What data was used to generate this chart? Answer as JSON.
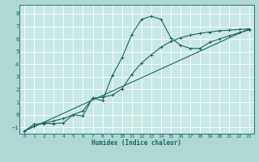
{
  "xlabel": "Humidex (Indice chaleur)",
  "ylabel": "",
  "background_color": "#aed8d4",
  "plot_bg_color": "#c8e8e5",
  "grid_color": "#ffffff",
  "line_color": "#1a6660",
  "xlim": [
    -0.5,
    23.5
  ],
  "ylim": [
    -1.5,
    8.7
  ],
  "xticks": [
    0,
    1,
    2,
    3,
    4,
    5,
    6,
    7,
    8,
    9,
    10,
    11,
    12,
    13,
    14,
    15,
    16,
    17,
    18,
    19,
    20,
    21,
    22,
    23
  ],
  "yticks": [
    -1,
    0,
    1,
    2,
    3,
    4,
    5,
    6,
    7,
    8
  ],
  "line1_x": [
    0,
    1,
    2,
    3,
    4,
    5,
    6,
    7,
    8,
    9,
    10,
    11,
    12,
    13,
    14,
    15,
    16,
    17,
    18,
    19,
    20,
    21,
    22,
    23
  ],
  "line1_y": [
    -1.3,
    -0.75,
    -0.7,
    -0.7,
    -0.65,
    0.0,
    -0.1,
    1.35,
    1.1,
    3.1,
    4.5,
    6.35,
    7.55,
    7.8,
    7.55,
    6.1,
    5.5,
    5.25,
    5.25,
    5.75,
    6.0,
    6.25,
    6.5,
    6.7
  ],
  "line2_x": [
    0,
    1,
    2,
    3,
    4,
    5,
    6,
    7,
    8,
    9,
    10,
    11,
    12,
    13,
    14,
    15,
    16,
    17,
    18,
    19,
    20,
    21,
    22,
    23
  ],
  "line2_y": [
    -1.3,
    -0.9,
    -0.65,
    -0.5,
    -0.3,
    0.0,
    0.3,
    1.3,
    1.4,
    1.55,
    2.05,
    3.2,
    4.1,
    4.75,
    5.35,
    5.8,
    6.1,
    6.3,
    6.45,
    6.55,
    6.65,
    6.7,
    6.75,
    6.8
  ],
  "line3_x": [
    0,
    23
  ],
  "line3_y": [
    -1.3,
    6.8
  ]
}
